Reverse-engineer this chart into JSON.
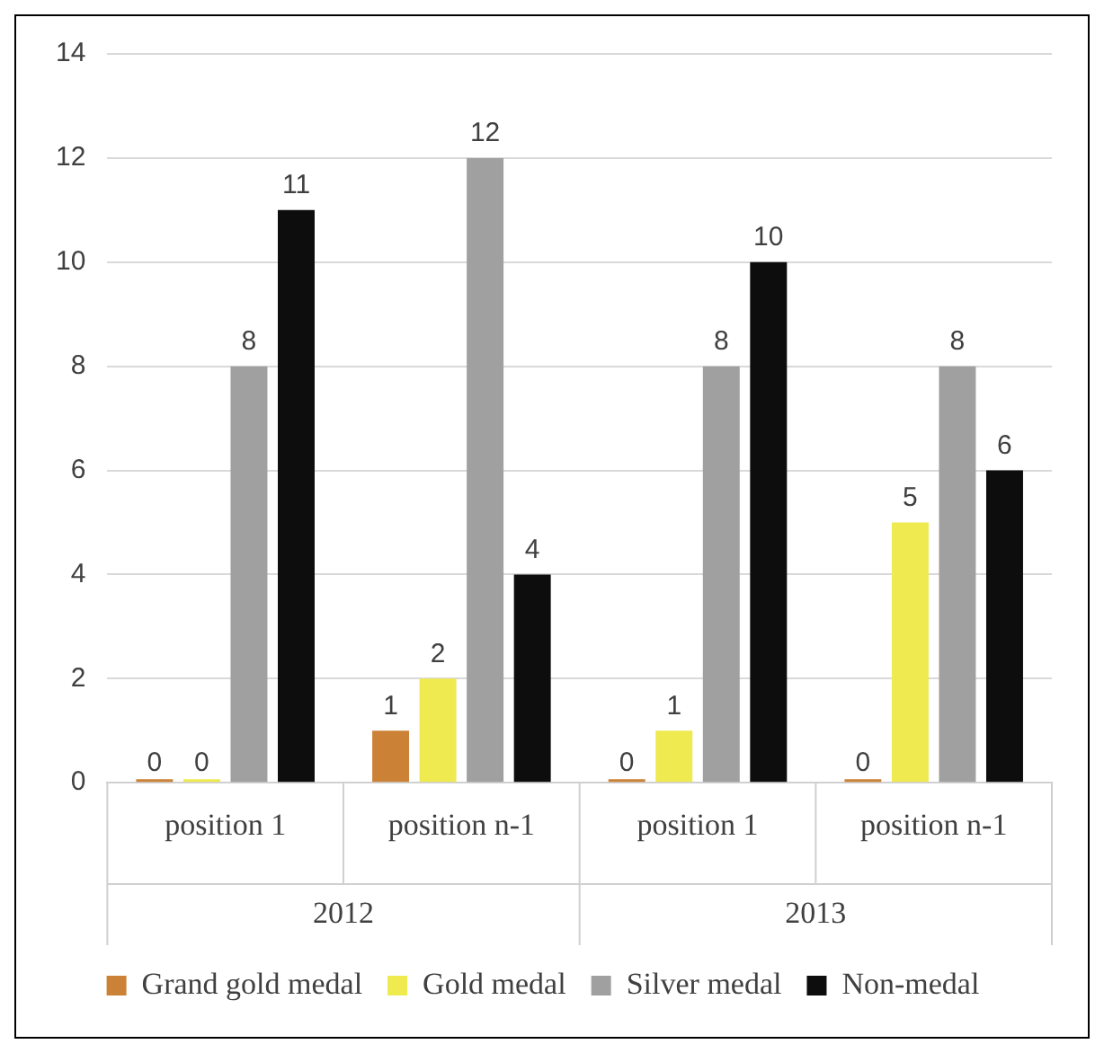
{
  "chart_data": {
    "type": "bar",
    "categories": [
      "position 1",
      "position n-1",
      "position 1",
      "position n-1"
    ],
    "series": [
      {
        "name": "Grand gold medal",
        "color": "#cc8236",
        "values": [
          0,
          1,
          0,
          0
        ]
      },
      {
        "name": "Gold medal",
        "color": "#eeea50",
        "values": [
          0,
          2,
          1,
          5
        ]
      },
      {
        "name": "Silver medal",
        "color": "#a0a0a0",
        "values": [
          8,
          12,
          8,
          8
        ]
      },
      {
        "name": "Non-medal",
        "color": "#0d0d0d",
        "values": [
          11,
          4,
          10,
          6
        ]
      }
    ],
    "ylim": [
      0,
      14
    ],
    "yticks": [
      0,
      2,
      4,
      6,
      8,
      10,
      12,
      14
    ],
    "grid": "y",
    "legend": "bottom",
    "data_labels": true,
    "annotations": [
      "2012",
      "2013"
    ]
  }
}
